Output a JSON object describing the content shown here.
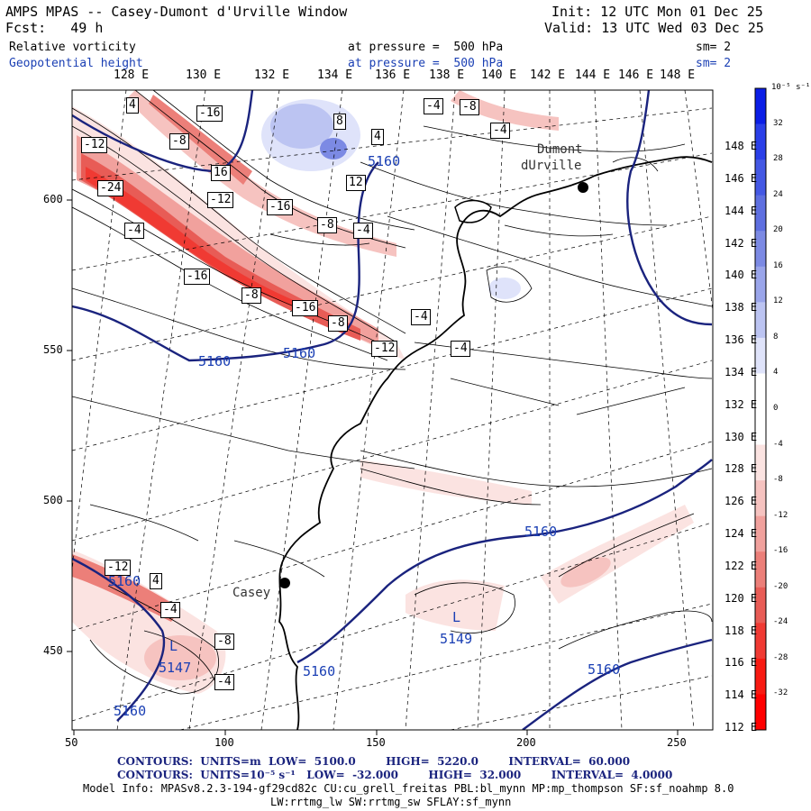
{
  "header": {
    "title": "AMPS MPAS -- Casey-Dumont d'Urville Window",
    "forecast": "Fcst:   49 h",
    "init": "Init: 12 UTC Mon 01 Dec 25",
    "valid": "Valid: 13 UTC Wed 03 Dec 25",
    "field1": {
      "name": "Relative vorticity",
      "level": "at pressure =  500 hPa",
      "sm": "sm= 2"
    },
    "field2": {
      "name": "Geopotential height",
      "level": "at pressure =  500 hPa",
      "sm": "sm= 2"
    }
  },
  "colorbar": {
    "unit_label": "10⁻⁵ s⁻¹",
    "ticks": [
      "32",
      "28",
      "24",
      "20",
      "16",
      "12",
      "8",
      "4",
      "0",
      "-4",
      "-8",
      "-12",
      "-16",
      "-20",
      "-24",
      "-28",
      "-32"
    ],
    "colors": [
      "#0b1ee6",
      "#2a3fe8",
      "#4458e4",
      "#5e6fe0",
      "#7c8ae4",
      "#9aa5ea",
      "#bcc4f2",
      "#dfe3fa",
      "#ffffff",
      "#ffffff",
      "#fbe3e1",
      "#f6c3c0",
      "#f1a19d",
      "#ec7f79",
      "#e85c56",
      "#f03a33",
      "#f81a12",
      "#ff0000"
    ]
  },
  "x_ticks": [
    "50",
    "100",
    "150",
    "200",
    "250"
  ],
  "y_ticks": [
    "600",
    "550",
    "500",
    "450"
  ],
  "lon_labels": [
    "128 E",
    "130 E",
    "132 E",
    "134 E",
    "136 E",
    "138 E",
    "140 E",
    "142 E",
    "144 E",
    "146 E",
    "148 E"
  ],
  "lat_labels": [
    "148 E",
    "146 E",
    "144 E",
    "142 E",
    "140 E",
    "138 E",
    "136 E",
    "134 E",
    "132 E",
    "130 E",
    "128 E",
    "126 E",
    "124 E",
    "122 E",
    "120 E",
    "118 E",
    "116 E",
    "114 E",
    "112 E"
  ],
  "stations": [
    {
      "name": "Dumont\ndUrville",
      "line1": "Dumont",
      "line2": "dUrville"
    },
    {
      "name": "Casey"
    }
  ],
  "height_labels": [
    "5160",
    "5160",
    "5160",
    "5160",
    "5160",
    "5160",
    "5160",
    "5160",
    "5149",
    "5147"
  ],
  "low_labels": [
    "L",
    "L"
  ],
  "vort_labels": [
    "4",
    "-16",
    "-8",
    "-12",
    "-24",
    "16",
    "-12",
    "-4",
    "-16",
    "-16",
    "-8",
    "-16",
    "-8",
    "-12",
    "-8",
    "-4",
    "8",
    "12",
    "4",
    "-4",
    "-8",
    "-4",
    "-4",
    "-4",
    "-12",
    "4",
    "-4",
    "-8",
    "-4"
  ],
  "footer": {
    "line1": "CONTOURS:  UNITS=m  LOW=  5100.0        HIGH=  5220.0        INTERVAL=  60.000",
    "line2": "CONTOURS:  UNITS=10⁻⁵ s⁻¹   LOW=  -32.000        HIGH=  32.000        INTERVAL=  4.0000",
    "line3": "Model Info: MPASv8.2.3-194-gf29cd82c CU:cu_grell_freitas PBL:bl_mynn MP:mp_thompson SF:sf_noahmp 8.0",
    "line4": "LW:rrtmg_lw SW:rrtmg_sw SFLAY:sf_mynn"
  }
}
